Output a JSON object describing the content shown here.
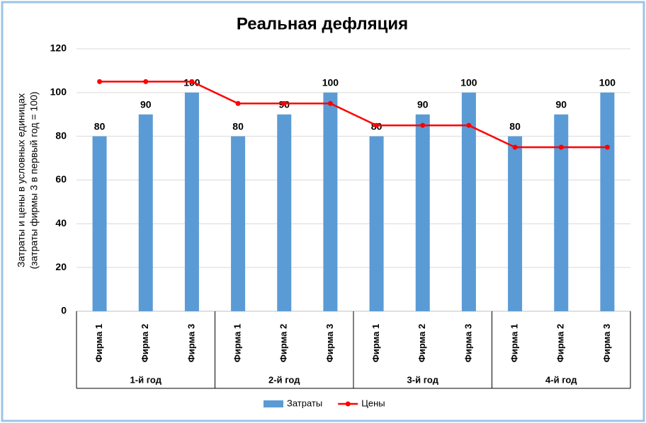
{
  "chart_data": {
    "type": "combo",
    "title": "Реальная дефляция",
    "ylabel": [
      "Затраты и цены в условных единицах",
      "(затраты фирмы 3 в первый год = 100)"
    ],
    "categories": [
      "Фирма 1",
      "Фирма 2",
      "Фирма 3",
      "Фирма 1",
      "Фирма 2",
      "Фирма 3",
      "Фирма 1",
      "Фирма 2",
      "Фирма 3",
      "Фирма 1",
      "Фирма 2",
      "Фирма 3"
    ],
    "groups": [
      "1-й год",
      "2-й год",
      "3-й год",
      "4-й год"
    ],
    "series": [
      {
        "name": "Затраты",
        "type": "bar",
        "color": "#5b9bd5",
        "data_labels": true,
        "values": [
          80,
          90,
          100,
          80,
          90,
          100,
          80,
          90,
          100,
          80,
          90,
          100
        ]
      },
      {
        "name": "Цены",
        "type": "line",
        "color": "#ff0000",
        "values": [
          105,
          105,
          105,
          95,
          95,
          95,
          85,
          85,
          85,
          75,
          75,
          75
        ]
      }
    ],
    "ylim": [
      0,
      120
    ],
    "yticks": [
      0,
      20,
      40,
      60,
      80,
      100,
      120
    ],
    "grid": true,
    "legend": "bottom"
  }
}
